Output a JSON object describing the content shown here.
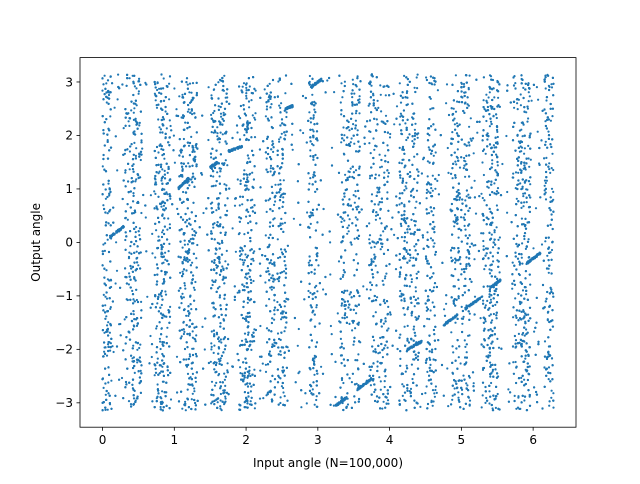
{
  "chart_data": {
    "type": "scatter",
    "title": "",
    "xlabel": "Input angle (N=100,000)",
    "ylabel": "Output angle",
    "xlim": [
      -0.3142,
      6.5973
    ],
    "ylim": [
      -3.4558,
      3.4558
    ],
    "xticks": [
      0,
      1,
      2,
      3,
      4,
      5,
      6
    ],
    "yticks": [
      -3,
      -2,
      -1,
      0,
      1,
      2,
      3
    ],
    "xtick_labels": [
      "0",
      "1",
      "2",
      "3",
      "4",
      "5",
      "6"
    ],
    "ytick_labels": [
      "−3",
      "−2",
      "−1",
      "0",
      "1",
      "2",
      "3"
    ],
    "grid": false,
    "series": [
      {
        "color": "#1f77b4",
        "marker_size": 1,
        "n_points": 100000,
        "x_range": [
          0,
          6.2832
        ],
        "y_range": [
          -3.1416,
          3.1416
        ],
        "band_centers": [
          0.06,
          0.38,
          0.48,
          0.79,
          0.88,
          1.13,
          1.25,
          1.57,
          1.68,
          1.97,
          2.06,
          2.34,
          2.5,
          2.93,
          3.38,
          3.52,
          3.78,
          3.92,
          4.2,
          4.34,
          4.58,
          4.92,
          5.06,
          5.36,
          5.46,
          5.78,
          5.9,
          6.22
        ],
        "diagonal_segments": [
          {
            "x": [
              0.1,
              0.3
            ],
            "y": [
              0.1,
              0.3
            ]
          },
          {
            "x": [
              1.05,
              1.2
            ],
            "y": [
              1.0,
              1.2
            ]
          },
          {
            "x": [
              1.5,
              1.6
            ],
            "y": [
              1.4,
              1.5
            ]
          },
          {
            "x": [
              1.75,
              1.95
            ],
            "y": [
              1.7,
              1.8
            ]
          },
          {
            "x": [
              2.55,
              2.65
            ],
            "y": [
              2.5,
              2.55
            ]
          },
          {
            "x": [
              2.9,
              3.05
            ],
            "y": [
              2.9,
              3.05
            ]
          },
          {
            "x": [
              3.25,
              3.4
            ],
            "y": [
              -3.05,
              -2.9
            ]
          },
          {
            "x": [
              3.55,
              3.75
            ],
            "y": [
              -2.75,
              -2.55
            ]
          },
          {
            "x": [
              4.25,
              4.45
            ],
            "y": [
              -2.0,
              -1.85
            ]
          },
          {
            "x": [
              4.75,
              4.95
            ],
            "y": [
              -1.55,
              -1.35
            ]
          },
          {
            "x": [
              5.05,
              5.3
            ],
            "y": [
              -1.25,
              -1.0
            ]
          },
          {
            "x": [
              5.4,
              5.55
            ],
            "y": [
              -0.85,
              -0.7
            ]
          },
          {
            "x": [
              5.9,
              6.1
            ],
            "y": [
              -0.4,
              -0.2
            ]
          }
        ]
      }
    ]
  }
}
